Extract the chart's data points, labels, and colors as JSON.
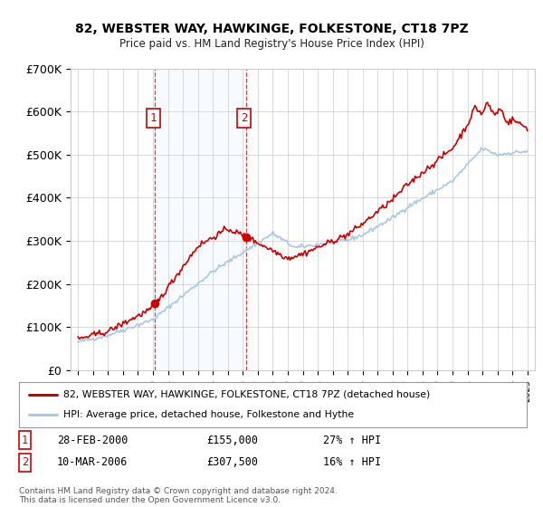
{
  "title": "82, WEBSTER WAY, HAWKINGE, FOLKESTONE, CT18 7PZ",
  "subtitle": "Price paid vs. HM Land Registry's House Price Index (HPI)",
  "ylim": [
    0,
    700000
  ],
  "yticks": [
    0,
    100000,
    200000,
    300000,
    400000,
    500000,
    600000,
    700000
  ],
  "ytick_labels": [
    "£0",
    "£100K",
    "£200K",
    "£300K",
    "£400K",
    "£500K",
    "£600K",
    "£700K"
  ],
  "sale1": {
    "date_num": 2000.15,
    "price": 155000,
    "label": "1",
    "date_str": "28-FEB-2000",
    "pct": "27% ↑ HPI"
  },
  "sale2": {
    "date_num": 2006.2,
    "price": 307500,
    "label": "2",
    "date_str": "10-MAR-2006",
    "pct": "16% ↑ HPI"
  },
  "legend_line1": "82, WEBSTER WAY, HAWKINGE, FOLKESTONE, CT18 7PZ (detached house)",
  "legend_line2": "HPI: Average price, detached house, Folkestone and Hythe",
  "footer": "Contains HM Land Registry data © Crown copyright and database right 2024.\nThis data is licensed under the Open Government Licence v3.0.",
  "hpi_color": "#a8c8e8",
  "price_color": "#cc0000",
  "marker_color": "#cc0000",
  "box_color": "#cc0000",
  "shade_color": "#ddeeff",
  "grid_color": "#cccccc",
  "bg_color": "#ffffff"
}
